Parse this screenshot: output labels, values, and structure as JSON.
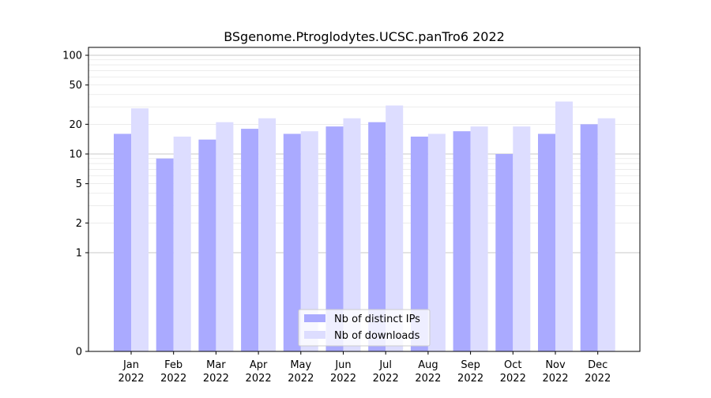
{
  "chart_data": {
    "type": "bar",
    "title": "BSgenome.Ptroglodytes.UCSC.panTro6 2022",
    "xlabel": "",
    "ylabel": "",
    "yscale": "symlog",
    "ylim": [
      0,
      120
    ],
    "yticks": [
      0,
      1,
      2,
      5,
      10,
      20,
      50,
      100
    ],
    "ytick_labels": [
      "0",
      "1",
      "2",
      "5",
      "10",
      "20",
      "50",
      "100"
    ],
    "categories": [
      [
        "Jan",
        "2022"
      ],
      [
        "Feb",
        "2022"
      ],
      [
        "Mar",
        "2022"
      ],
      [
        "Apr",
        "2022"
      ],
      [
        "May",
        "2022"
      ],
      [
        "Jun",
        "2022"
      ],
      [
        "Jul",
        "2022"
      ],
      [
        "Aug",
        "2022"
      ],
      [
        "Sep",
        "2022"
      ],
      [
        "Oct",
        "2022"
      ],
      [
        "Nov",
        "2022"
      ],
      [
        "Dec",
        "2022"
      ]
    ],
    "series": [
      {
        "name": "Nb of distinct IPs",
        "color": "#aaaaff",
        "values": [
          16,
          9,
          14,
          18,
          16,
          19,
          21,
          15,
          17,
          10,
          16,
          20
        ]
      },
      {
        "name": "Nb of downloads",
        "color": "#ddddff",
        "values": [
          29,
          15,
          21,
          23,
          17,
          23,
          31,
          16,
          19,
          19,
          34,
          23
        ]
      }
    ],
    "grid": true,
    "legend_position": "bottom-center"
  }
}
